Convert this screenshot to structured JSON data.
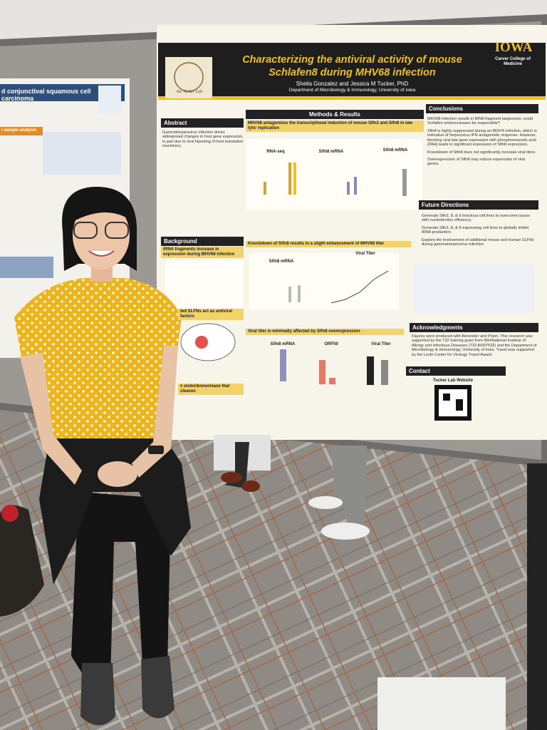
{
  "poster": {
    "lab": "the Tucker Lab",
    "title_line1": "Characterizing the antiviral activity of mouse",
    "title_line2": "Schlafen8 during MHV68 infection",
    "authors": "Sheila Gonzalez and Jessica M Tucker, PhD",
    "affiliation": "Department of Microbiology & Immunology, University of Iowa",
    "logo": "IOWA",
    "college": "Carver College of Medicine",
    "abstract_heading": "Abstract",
    "abstract_text": "Gammaherpesvirus infection drives widespread changes in host gene expression, in part due to viral hijacking of host translation machinery.",
    "methods_heading": "Methods & Results",
    "result1": "MHV68 antagonizes the transcriptional induction of mouse Slfn2 and Slfn8 in late lytic replication",
    "chart_a": "RNA-seq",
    "chart_b": "Slfn8 mRNA",
    "chart_c": "Slfn8 mRNA",
    "result2": "Knockdown of Slfn8 results in a slight enhancement of MHV68 titer",
    "chart_d": "Slfn8 mRNA",
    "chart_e": "Viral Titer",
    "result3": "Viral titer is minimally affected by Slfn8 overexpression",
    "chart_f": "Slfn8 mRNA",
    "chart_g": "ORF50",
    "chart_h": "Viral Titer",
    "background_heading": "Background",
    "background_sub": "tRNA fragments increase in expression during MHV68 infection",
    "background_mid": "ted SLFNs act as antiviral factors",
    "background_low": "n endoribonuclease that cleaves",
    "conclusions_heading": "Conclusions",
    "conclusions": [
      "MHV68 infection results in tRNA fragment biogenesis, could Schlafen endonucleases be responsible?",
      "Slfn8 is highly suppressed during an MOI=5 infection, which is indicative of herpesvirus IFN antagonistic response. However, blocking viral late gene expression with phosphonoacetic acid (PAA) leads to significant expression of Slfn8 expression.",
      "Knockdown of Slfn8 does not significantly increase viral titers.",
      "Overexpression of Slfn8 may reduce expression of viral genes."
    ],
    "future_heading": "Future Directions",
    "future": [
      "Generate Slfn2, 8, & 9 knockout cell lines to overcome issues with nucleofection efficiency.",
      "Generate Slfn2, 8, & 9-expressing cell lines to globally inhibit tRNA production.",
      "Explore the involvement of additional mouse and human SLFNs during gammaherpesvirus infection"
    ],
    "ack_heading": "Acknowledgments",
    "ack_text": "Figures were produced with Biorender and Prism. This research was supported by the T32 training grant from NIH/National Institute of Allergy and Infectious Diseases (T32 AI007533) and the Department of Microbiology & Immunology, University of Iowa. Travel was supported by the Levitt Center for Virology Travel Award.",
    "contact_heading": "Contact",
    "website": "Tucker Lab Website"
  },
  "left_poster": {
    "title": "d conjunctival squamous cell carcinoma",
    "section": "l sample analysis"
  }
}
